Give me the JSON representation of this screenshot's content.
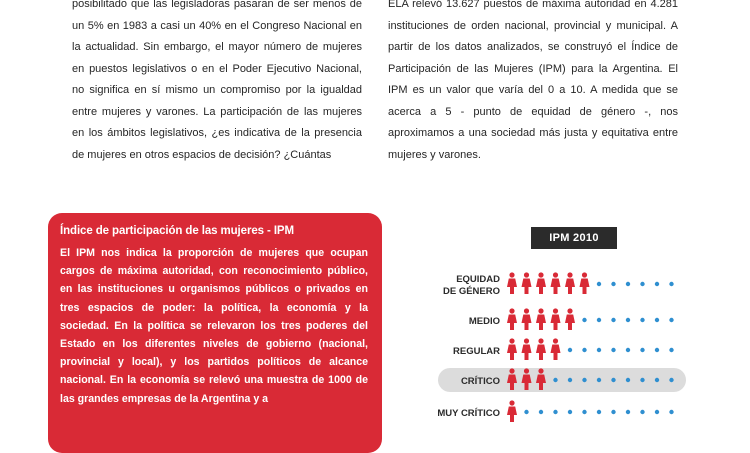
{
  "article": {
    "left_column": "posibilitado que las legisladoras pasaran de ser menos de un 5% en 1983 a casi un 40% en el Congreso Nacional en la actualidad. Sin embargo, el mayor número de mujeres en puestos legislativos o en el Poder Ejecutivo Nacional, no significa en sí mismo un compromiso por la igualdad entre mujeres y varones. La participación de las mujeres en los ámbitos legislativos, ¿es indicativa de la presencia de mujeres en otros espacios de decisión? ¿Cuántas",
    "right_column": "ELA relevó 13.627 puestos de máxima autoridad en 4.281 instituciones de orden nacional, provincial y municipal. A partir de los datos analizados, se construyó el Índice de Participación de las Mujeres (IPM) para la Argentina. El IPM es un valor que varía del 0 a 10. A medida que se acerca a 5 - punto de equidad de género -, nos aproximamos a una sociedad más justa y equitativa entre mujeres y varones."
  },
  "ipm_box": {
    "title": "Índice de participación de las mujeres - IPM",
    "body": "El IPM nos indica la proporción de mujeres que ocupan cargos de máxima autoridad, con reconocimiento público, en las instituciones u organismos públicos o privados en tres espacios de poder: la política, la economía y la sociedad. En la política se relevaron los tres poderes del Estado en los diferentes niveles de gobierno (nacional, provincial y local), y los partidos políticos de alcance nacional. En la economía se relevó una muestra de 1000 de las grandes empresas de la Argentina y a"
  },
  "chart_data": {
    "type": "pictogram",
    "title": "IPM 2010",
    "rows": [
      {
        "label_lines": [
          "EQUIDAD",
          "DE GÉNERO"
        ],
        "figures": 6,
        "highlight": false
      },
      {
        "label_lines": [
          "MEDIO"
        ],
        "figures": 5,
        "highlight": false
      },
      {
        "label_lines": [
          "REGULAR"
        ],
        "figures": 4,
        "highlight": false
      },
      {
        "label_lines": [
          "CRÍTICO"
        ],
        "figures": 3,
        "highlight": true
      },
      {
        "label_lines": [
          "MUY CRÍTICO"
        ],
        "figures": 1,
        "highlight": false
      }
    ],
    "total_slots": 12,
    "colors": {
      "figure": "#d92a36",
      "dot": "#2f8fd0",
      "highlight_band": "#dcdcdc",
      "highlight_label": "#d92a36"
    }
  }
}
